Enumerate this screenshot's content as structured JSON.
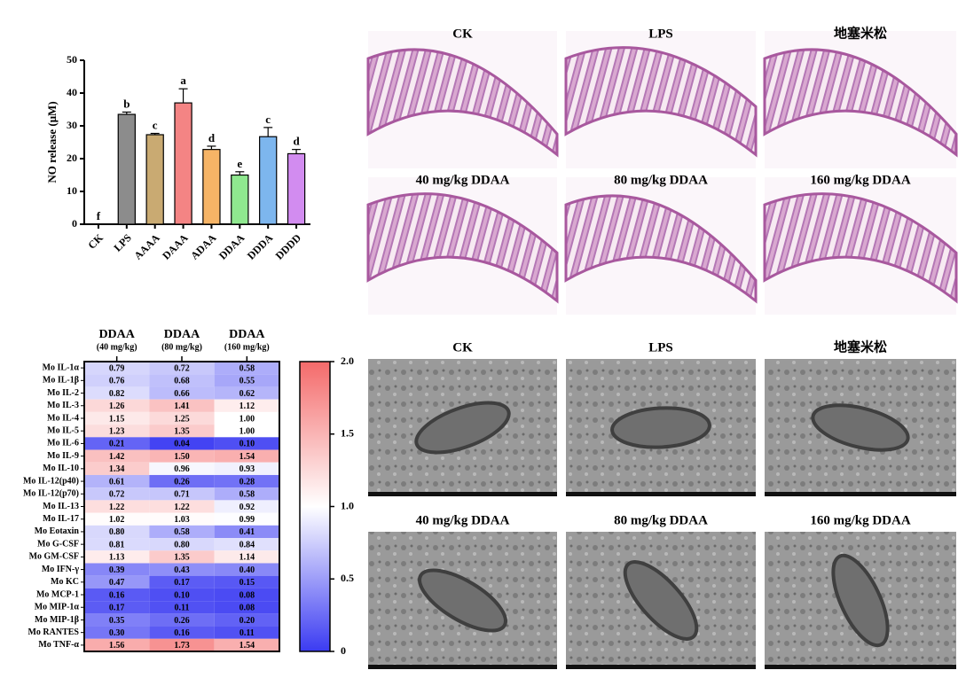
{
  "chart_data": [
    {
      "type": "bar",
      "ylabel": "NO release (μM)",
      "categories": [
        "CK",
        "LPS",
        "AAAA",
        "DAAA",
        "ADAA",
        "DDAA",
        "DDDA",
        "DDDD"
      ],
      "values": [
        0,
        33.5,
        27.3,
        37,
        22.8,
        15,
        26.7,
        21.5
      ],
      "errors": [
        0,
        0.7,
        0.4,
        4.3,
        1,
        1,
        2.8,
        1.3
      ],
      "letters": [
        "f",
        "b",
        "c",
        "a",
        "d",
        "e",
        "c",
        "d"
      ],
      "colors": [
        "#ffffff",
        "#8c8c8c",
        "#c9aa72",
        "#f48484",
        "#f6b466",
        "#8fe88f",
        "#7db6ee",
        "#d28cf0"
      ],
      "ylim": [
        0,
        50
      ],
      "yticks": [
        0,
        10,
        20,
        30,
        40,
        50
      ]
    },
    {
      "type": "heatmap",
      "columns": [
        "DDAA",
        "DDAA",
        "DDAA"
      ],
      "column_notes": [
        "(40 mg/kg)",
        "(80 mg/kg)",
        "(160 mg/kg)"
      ],
      "rows": [
        "Mo IL-1α",
        "Mo IL-1β",
        "Mo IL-2",
        "Mo IL-3",
        "Mo IL-4",
        "Mo IL-5",
        "Mo IL-6",
        "Mo IL-9",
        "Mo IL-10",
        "Mo IL-12(p40)",
        "Mo IL-12(p70)",
        "Mo IL-13",
        "Mo IL-17",
        "Mo Eotaxin",
        "Mo G-CSF",
        "Mo GM-CSF",
        "Mo IFN-γ",
        "Mo KC",
        "Mo MCP-1",
        "Mo MIP-1α",
        "Mo MIP-1β",
        "Mo RANTES",
        "Mo TNF-α"
      ],
      "values": [
        [
          0.79,
          0.72,
          0.58
        ],
        [
          0.76,
          0.68,
          0.55
        ],
        [
          0.82,
          0.66,
          0.62
        ],
        [
          1.26,
          1.41,
          1.12
        ],
        [
          1.15,
          1.25,
          1
        ],
        [
          1.23,
          1.35,
          1
        ],
        [
          0.21,
          0.04,
          0.1
        ],
        [
          1.42,
          1.5,
          1.54
        ],
        [
          1.34,
          0.96,
          0.93
        ],
        [
          0.61,
          0.26,
          0.28
        ],
        [
          0.72,
          0.71,
          0.58
        ],
        [
          1.22,
          1.22,
          0.92
        ],
        [
          1.02,
          1.03,
          0.99
        ],
        [
          0.8,
          0.58,
          0.41
        ],
        [
          0.81,
          0.8,
          0.84
        ],
        [
          1.13,
          1.35,
          1.14
        ],
        [
          0.39,
          0.43,
          0.4
        ],
        [
          0.47,
          0.17,
          0.15
        ],
        [
          0.16,
          0.1,
          0.08
        ],
        [
          0.17,
          0.11,
          0.08
        ],
        [
          0.35,
          0.26,
          0.2
        ],
        [
          0.3,
          0.16,
          0.11
        ],
        [
          1.56,
          1.73,
          1.54
        ]
      ],
      "value_labels": [
        [
          "0.79",
          "0.72",
          "0.58"
        ],
        [
          "0.76",
          "0.68",
          "0.55"
        ],
        [
          "0.82",
          "0.66",
          "0.62"
        ],
        [
          "1.26",
          "1.41",
          "1.12"
        ],
        [
          "1.15",
          "1.25",
          "1.00"
        ],
        [
          "1.23",
          "1.35",
          "1.00"
        ],
        [
          "0.21",
          "0.04",
          "0.10"
        ],
        [
          "1.42",
          "1.50",
          "1.54"
        ],
        [
          "1.34",
          "0.96",
          "0.93"
        ],
        [
          "0.61",
          "0.26",
          "0.28"
        ],
        [
          "0.72",
          "0.71",
          "0.58"
        ],
        [
          "1.22",
          "1.22",
          "0.92"
        ],
        [
          "1.02",
          "1.03",
          "0.99"
        ],
        [
          "0.80",
          "0.58",
          "0.41"
        ],
        [
          "0.81",
          "0.80",
          "0.84"
        ],
        [
          "1.13",
          "1.35",
          "1.14"
        ],
        [
          "0.39",
          "0.43",
          "0.40"
        ],
        [
          "0.47",
          "0.17",
          "0.15"
        ],
        [
          "0.16",
          "0.10",
          "0.08"
        ],
        [
          "0.17",
          "0.11",
          "0.08"
        ],
        [
          "0.35",
          "0.26",
          "0.20"
        ],
        [
          "0.30",
          "0.16",
          "0.11"
        ],
        [
          "1.56",
          "1.73",
          "1.54"
        ]
      ],
      "colormap": [
        "#3b3bf2",
        "#ffffff",
        "#f46a6a"
      ],
      "clim": [
        0,
        2
      ],
      "cticks": [
        0,
        0.5,
        {
          "value": 1,
          "label": "1.0"
        },
        1.5,
        {
          "value": 2,
          "label": "2.0"
        }
      ]
    }
  ],
  "histology_panels": [
    "CK",
    "LPS",
    "地塞米松",
    "40 mg/kg DDAA",
    "80 mg/kg DDAA",
    "160 mg/kg DDAA"
  ],
  "em_panels": [
    "CK",
    "LPS",
    "地塞米松",
    "40 mg/kg DDAA",
    "80 mg/kg DDAA",
    "160 mg/kg DDAA"
  ]
}
